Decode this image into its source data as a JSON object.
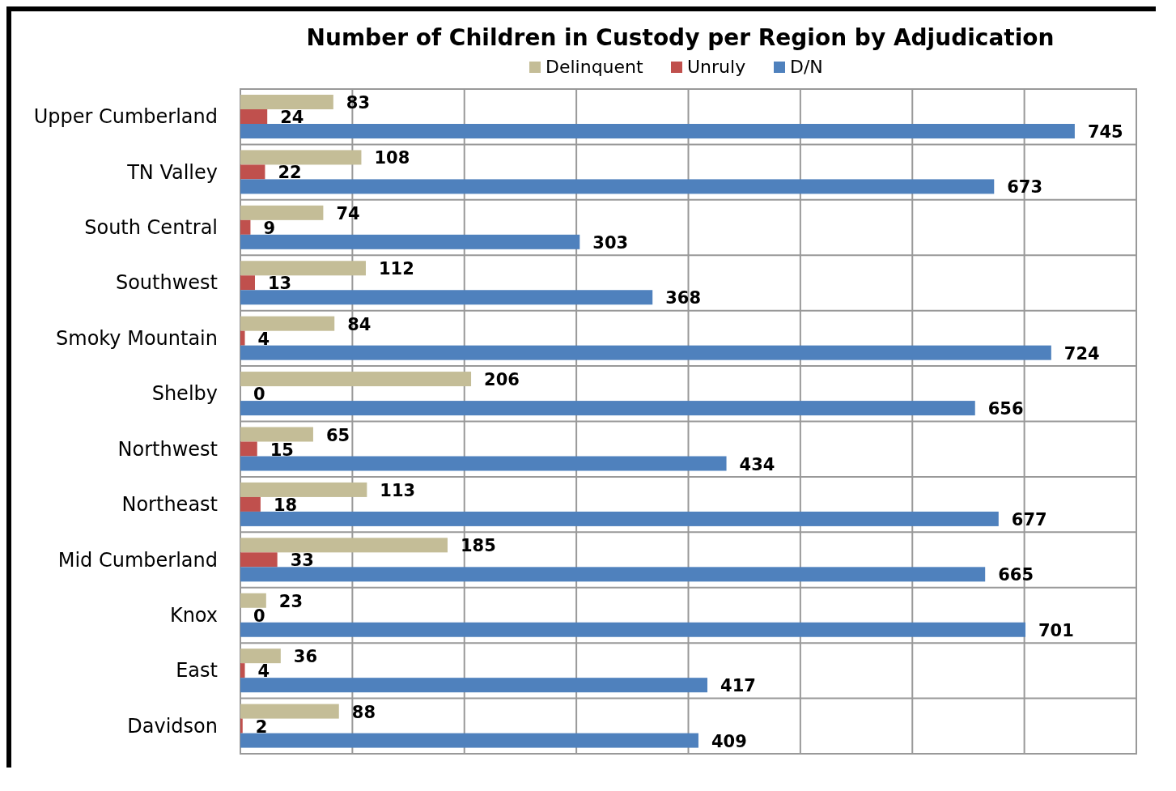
{
  "chart_data": {
    "type": "bar",
    "orientation": "horizontal",
    "title": "Number of Children in Custody per Region by Adjudication",
    "categories": [
      "Upper Cumberland",
      "TN Valley",
      "South Central",
      "Southwest",
      "Smoky Mountain",
      "Shelby",
      "Northwest",
      "Northeast",
      "Mid Cumberland",
      "Knox",
      "East",
      "Davidson"
    ],
    "series": [
      {
        "name": "Delinquent",
        "color": "#c4bd97",
        "values": [
          83,
          108,
          74,
          112,
          84,
          206,
          65,
          113,
          185,
          23,
          36,
          88
        ]
      },
      {
        "name": "Unruly",
        "color": "#c0504d",
        "values": [
          24,
          22,
          9,
          13,
          4,
          0,
          15,
          18,
          33,
          0,
          4,
          2
        ]
      },
      {
        "name": "D/N",
        "color": "#4f81bd",
        "values": [
          745,
          673,
          303,
          368,
          724,
          656,
          434,
          677,
          665,
          701,
          417,
          409
        ]
      }
    ],
    "xlim": [
      0,
      800
    ],
    "xticks": [
      {
        "value": 0,
        "label": null
      },
      {
        "value": 100,
        "label": null
      },
      {
        "value": 200,
        "label": null
      },
      {
        "value": 300,
        "label": null
      },
      {
        "value": 400,
        "label": null
      },
      {
        "value": 500,
        "label": null
      },
      {
        "value": 600,
        "label": null
      },
      {
        "value": 700,
        "label": null
      },
      {
        "value": 800,
        "label": null
      }
    ],
    "grid": "x",
    "legend": "top",
    "data_labels": true
  }
}
